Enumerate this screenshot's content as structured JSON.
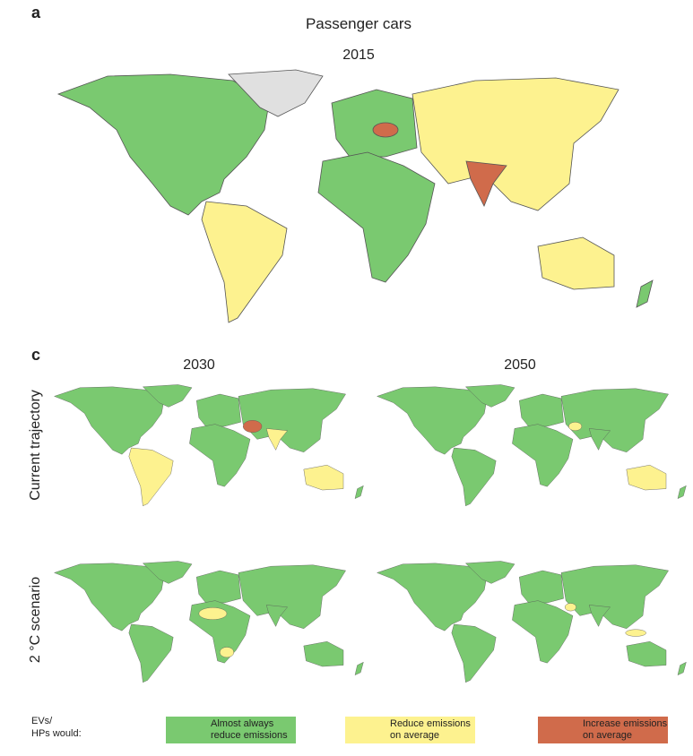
{
  "panel_a": {
    "letter": "a",
    "title": "Passenger cars",
    "year": "2015"
  },
  "panel_c": {
    "letter": "c",
    "columns": [
      "2030",
      "2050"
    ],
    "rows": [
      "Current trajectory",
      "2 °C scenario"
    ]
  },
  "legend": {
    "title_lines": [
      "EVs/",
      "HPs would:"
    ],
    "items": [
      {
        "label_lines": [
          "Almost always",
          "reduce emissions"
        ],
        "color": "#7ac970"
      },
      {
        "label_lines": [
          "Reduce emissions",
          "on average"
        ],
        "color": "#fdf28f"
      },
      {
        "label_lines": [
          "Increase emissions",
          "on average"
        ],
        "color": "#d06b4b"
      }
    ]
  }
}
